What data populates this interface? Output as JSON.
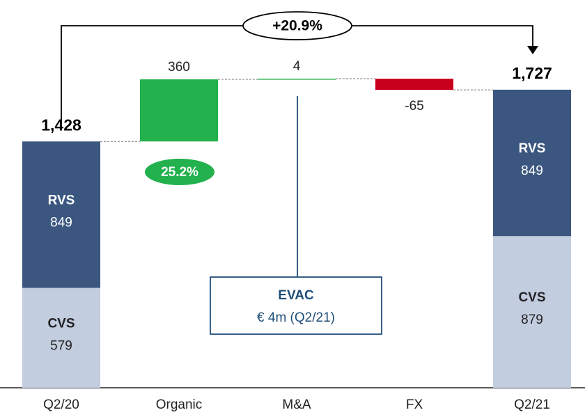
{
  "chart_data": {
    "type": "waterfall",
    "categories": [
      "Q2/20",
      "Organic",
      "M&A",
      "FX",
      "Q2/21"
    ],
    "series": [
      {
        "name": "CVS",
        "color": "#c3cde0",
        "text_color": "#222222",
        "values": [
          579,
          null,
          null,
          null,
          879
        ]
      },
      {
        "name": "RVS",
        "color": "#3b5780",
        "text_color": "#ffffff",
        "values": [
          849,
          null,
          null,
          null,
          849
        ]
      }
    ],
    "totals": {
      "values": [
        1428,
        null,
        null,
        null,
        1727
      ],
      "value_labels": [
        "1,428",
        null,
        null,
        null,
        "1,727"
      ]
    },
    "steps": {
      "values": [
        null,
        360,
        4,
        -65,
        null
      ],
      "colors": [
        null,
        "#22b14c",
        "#22b14c",
        "#c8001e",
        null
      ]
    },
    "annotations": {
      "growth": "+20.9%",
      "organic_growth": "25.2%",
      "callout_title": "EVAC",
      "callout_text": "€ 4m (Q2/21)"
    }
  }
}
